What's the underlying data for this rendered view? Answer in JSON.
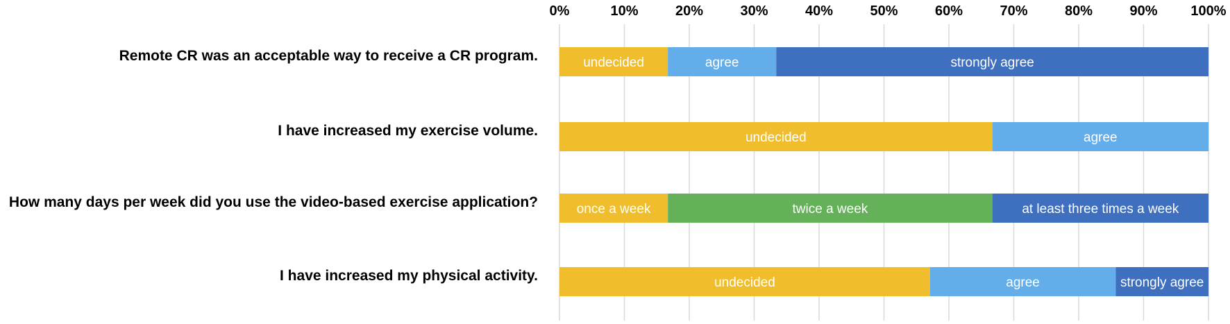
{
  "chart_data": {
    "type": "bar",
    "orientation": "horizontal",
    "stacked": true,
    "xlim": [
      0,
      100
    ],
    "x_ticks": [
      "0%",
      "10%",
      "20%",
      "30%",
      "40%",
      "50%",
      "60%",
      "70%",
      "80%",
      "90%",
      "100%"
    ],
    "x_axis_position": "top",
    "grid": true,
    "categories": [
      "Remote CR was an acceptable way to receive a CR program.",
      "I have increased my exercise volume.",
      "How many days per week did you use the video-based exercise application?",
      "I have increased my physical activity."
    ],
    "bars": [
      {
        "segments": [
          {
            "label": "undecided",
            "value": 16.7,
            "color": "#F0BE2C"
          },
          {
            "label": "agree",
            "value": 16.7,
            "color": "#63AEEA"
          },
          {
            "label": "strongly agree",
            "value": 66.6,
            "color": "#3F6FBF"
          }
        ]
      },
      {
        "segments": [
          {
            "label": "undecided",
            "value": 66.7,
            "color": "#F0BE2C"
          },
          {
            "label": "agree",
            "value": 33.3,
            "color": "#63AEEA"
          }
        ]
      },
      {
        "segments": [
          {
            "label": "once a week",
            "value": 16.7,
            "color": "#F0BE2C"
          },
          {
            "label": "twice a week",
            "value": 50.0,
            "color": "#64B15A"
          },
          {
            "label": "at least three times  a week",
            "value": 33.3,
            "color": "#3F6FBF"
          }
        ]
      },
      {
        "segments": [
          {
            "label": "undecided",
            "value": 57.1,
            "color": "#F0BE2C"
          },
          {
            "label": "agree",
            "value": 28.6,
            "color": "#63AEEA"
          },
          {
            "label": "strongly agree",
            "value": 14.3,
            "color": "#3F6FBF"
          }
        ]
      }
    ]
  }
}
